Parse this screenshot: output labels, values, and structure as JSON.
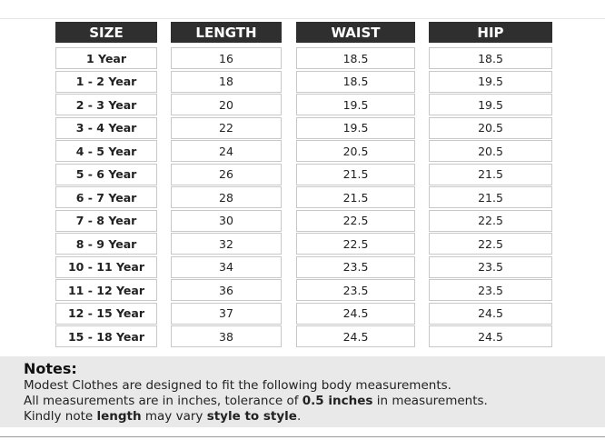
{
  "table": {
    "header": [
      "SIZE",
      "LENGTH",
      "WAIST",
      "HIP"
    ],
    "rows": [
      [
        "1 Year",
        "16",
        "18.5",
        "18.5"
      ],
      [
        "1 - 2 Year",
        "18",
        "18.5",
        "19.5"
      ],
      [
        "2 - 3 Year",
        "20",
        "19.5",
        "19.5"
      ],
      [
        "3 - 4 Year",
        "22",
        "19.5",
        "20.5"
      ],
      [
        "4 - 5 Year",
        "24",
        "20.5",
        "20.5"
      ],
      [
        "5 - 6 Year",
        "26",
        "21.5",
        "21.5"
      ],
      [
        "6 - 7 Year",
        "28",
        "21.5",
        "21.5"
      ],
      [
        "7 - 8 Year",
        "30",
        "22.5",
        "22.5"
      ],
      [
        "8 - 9 Year",
        "32",
        "22.5",
        "22.5"
      ],
      [
        "10 - 11 Year",
        "34",
        "23.5",
        "23.5"
      ],
      [
        "11 - 12 Year",
        "36",
        "23.5",
        "23.5"
      ],
      [
        "12 - 15 Year",
        "37",
        "24.5",
        "24.5"
      ],
      [
        "15 - 18 Year",
        "38",
        "24.5",
        "24.5"
      ]
    ]
  },
  "notes": {
    "title": "Notes:",
    "lines": [
      [
        {
          "text": "Modest Clothes are designed to fit the following body measurements.",
          "bold": false
        }
      ],
      [
        {
          "text": "All measurements are in inches, tolerance of ",
          "bold": false
        },
        {
          "text": "0.5 inches",
          "bold": true
        },
        {
          "text": " in measurements.",
          "bold": false
        }
      ],
      [
        {
          "text": "Kindly note ",
          "bold": false
        },
        {
          "text": "length",
          "bold": true
        },
        {
          "text": " may vary ",
          "bold": false
        },
        {
          "text": "style to style",
          "bold": true
        },
        {
          "text": ".",
          "bold": false
        }
      ]
    ]
  }
}
